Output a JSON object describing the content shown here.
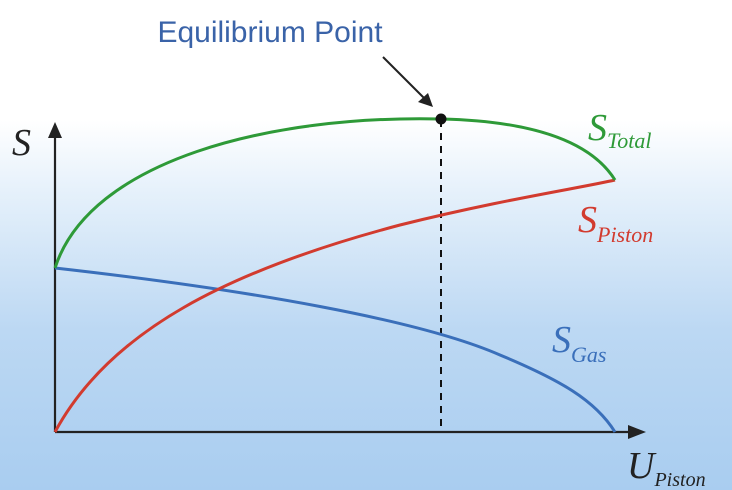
{
  "annotation": {
    "label": "Equilibrium Point"
  },
  "axes": {
    "y_label": "S",
    "x_label_main": "U",
    "x_label_sub": "Piston"
  },
  "curves": {
    "total": {
      "main": "S",
      "sub": "Total",
      "color": "#2e9a38"
    },
    "piston": {
      "main": "S",
      "sub": "Piston",
      "color": "#d23b2f"
    },
    "gas": {
      "main": "S",
      "sub": "Gas",
      "color": "#3a6fba"
    }
  },
  "colors": {
    "annotation_text": "#3a63a8",
    "axis": "#222222"
  }
}
